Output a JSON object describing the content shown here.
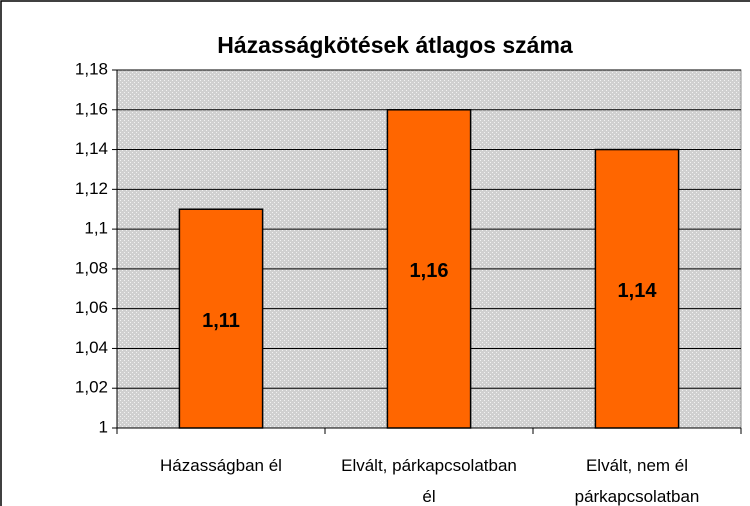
{
  "chart_data": {
    "type": "bar",
    "title": "Házasságkötések átlagos száma",
    "categories": [
      "Házasságban él",
      "Elvált, párkapcsolatban él",
      "Elvált, nem él párkapcsolatban"
    ],
    "values": [
      1.11,
      1.16,
      1.14
    ],
    "value_labels": [
      "1,11",
      "1,16",
      "1,14"
    ],
    "color": "#ff6600",
    "ylim": [
      1,
      1.18
    ],
    "yticks": [
      1,
      {
        "value": 1.02,
        "label": "1,02"
      },
      {
        "value": 1.04,
        "label": "1,04"
      },
      {
        "value": 1.06,
        "label": "1,06"
      },
      {
        "value": 1.08,
        "label": "1,08"
      },
      {
        "value": 1.1,
        "label": "1,1"
      },
      {
        "value": 1.12,
        "label": "1,12"
      },
      {
        "value": 1.14,
        "label": "1,14"
      },
      {
        "value": 1.16,
        "label": "1,16"
      },
      {
        "value": 1.18,
        "label": "1,18"
      }
    ],
    "grid": true
  }
}
